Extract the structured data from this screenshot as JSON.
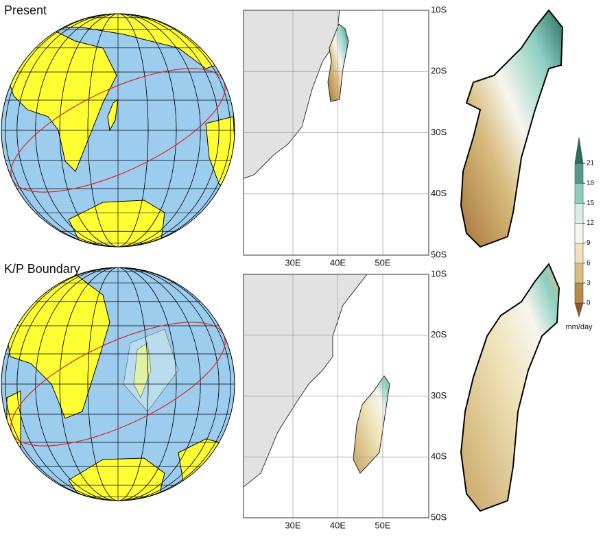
{
  "panels": [
    {
      "label": "Present"
    },
    {
      "label": "K/P Boundary"
    }
  ],
  "map_axes": {
    "xticks": [
      "30E",
      "40E",
      "50E"
    ],
    "yticks": [
      "10S",
      "20S",
      "30S",
      "40S",
      "50S"
    ]
  },
  "colorbar": {
    "ticks": [
      0,
      3,
      6,
      9,
      12,
      15,
      18,
      21
    ],
    "colors": [
      "#8c5a25",
      "#b98a45",
      "#d8bd7f",
      "#efe2b8",
      "#f7f6ee",
      "#d5efe8",
      "#8ccfc0",
      "#4f9c8c",
      "#2a6e60"
    ],
    "label": "mm/day"
  }
}
